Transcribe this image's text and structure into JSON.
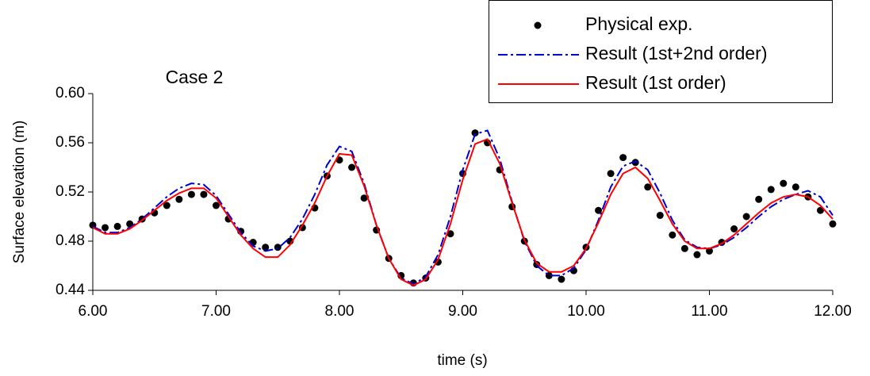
{
  "chart_data": {
    "type": "line",
    "title": "Case 2",
    "x_label": "time (s)",
    "y_label": "Surface elevation (m)",
    "x": [
      6,
      6.1,
      6.2,
      6.3,
      6.4,
      6.5,
      6.6,
      6.7,
      6.8,
      6.9,
      7,
      7.1,
      7.2,
      7.3,
      7.4,
      7.5,
      7.6,
      7.7,
      7.8,
      7.9,
      8,
      8.1,
      8.2,
      8.3,
      8.4,
      8.5,
      8.6,
      8.7,
      8.8,
      8.9,
      9,
      9.1,
      9.2,
      9.3,
      9.4,
      9.5,
      9.6,
      9.7,
      9.8,
      9.9,
      10,
      10.1,
      10.2,
      10.3,
      10.4,
      10.5,
      10.6,
      10.7,
      10.8,
      10.9,
      11,
      11.1,
      11.2,
      11.3,
      11.4,
      11.5,
      11.6,
      11.7,
      11.8,
      11.9,
      12
    ],
    "series": [
      {
        "name": "Physical exp.",
        "color": "#000000",
        "style": "dots",
        "values": [
          0.493,
          0.491,
          0.492,
          0.494,
          0.498,
          0.503,
          0.509,
          0.514,
          0.518,
          0.518,
          0.509,
          0.498,
          0.488,
          0.479,
          0.475,
          0.475,
          0.48,
          0.491,
          0.507,
          0.533,
          0.546,
          0.54,
          0.515,
          0.489,
          0.466,
          0.452,
          0.446,
          0.45,
          0.463,
          0.486,
          0.535,
          0.568,
          0.56,
          0.538,
          0.508,
          0.48,
          0.461,
          0.452,
          0.449,
          0.456,
          0.475,
          0.505,
          0.535,
          0.548,
          0.544,
          0.524,
          0.501,
          0.485,
          0.474,
          0.469,
          0.472,
          0.479,
          0.49,
          0.5,
          0.514,
          0.522,
          0.527,
          0.524,
          0.516,
          0.505,
          0.494
        ]
      },
      {
        "name": "Result (1st+2nd order)",
        "color": "#0000cc",
        "style": "dashdot",
        "values": [
          0.492,
          0.487,
          0.487,
          0.491,
          0.498,
          0.507,
          0.516,
          0.523,
          0.527,
          0.526,
          0.517,
          0.502,
          0.487,
          0.476,
          0.472,
          0.474,
          0.483,
          0.498,
          0.518,
          0.542,
          0.557,
          0.553,
          0.527,
          0.493,
          0.466,
          0.45,
          0.445,
          0.451,
          0.469,
          0.5,
          0.538,
          0.567,
          0.57,
          0.547,
          0.512,
          0.48,
          0.46,
          0.452,
          0.452,
          0.458,
          0.473,
          0.497,
          0.524,
          0.541,
          0.545,
          0.538,
          0.519,
          0.497,
          0.481,
          0.475,
          0.474,
          0.477,
          0.483,
          0.491,
          0.5,
          0.508,
          0.514,
          0.518,
          0.521,
          0.516,
          0.501
        ]
      },
      {
        "name": "Result (1st order)",
        "color": "#ff0000",
        "style": "solid",
        "values": [
          0.491,
          0.486,
          0.486,
          0.49,
          0.497,
          0.505,
          0.513,
          0.519,
          0.523,
          0.523,
          0.515,
          0.5,
          0.485,
          0.474,
          0.467,
          0.467,
          0.477,
          0.493,
          0.511,
          0.533,
          0.551,
          0.55,
          0.525,
          0.493,
          0.466,
          0.449,
          0.444,
          0.449,
          0.465,
          0.494,
          0.53,
          0.559,
          0.563,
          0.543,
          0.511,
          0.481,
          0.462,
          0.455,
          0.455,
          0.46,
          0.474,
          0.495,
          0.518,
          0.535,
          0.54,
          0.531,
          0.513,
          0.494,
          0.48,
          0.474,
          0.474,
          0.478,
          0.485,
          0.494,
          0.503,
          0.511,
          0.516,
          0.518,
          0.516,
          0.509,
          0.498
        ]
      }
    ],
    "xlim": [
      6,
      12
    ],
    "xticks": [
      {
        "value": 6,
        "label": "6.00"
      },
      {
        "value": 7,
        "label": "7.00"
      },
      {
        "value": 8,
        "label": "8.00"
      },
      {
        "value": 9,
        "label": "9.00"
      },
      {
        "value": 10,
        "label": "10.00"
      },
      {
        "value": 11,
        "label": "11.00"
      },
      {
        "value": 12,
        "label": "12.00"
      }
    ],
    "ylim": [
      0.44,
      0.6
    ],
    "yticks": [
      0.44,
      0.48,
      0.52,
      0.56,
      {
        "value": 0.6,
        "label": "0.60"
      }
    ],
    "grid": false,
    "legend": "top-right"
  }
}
